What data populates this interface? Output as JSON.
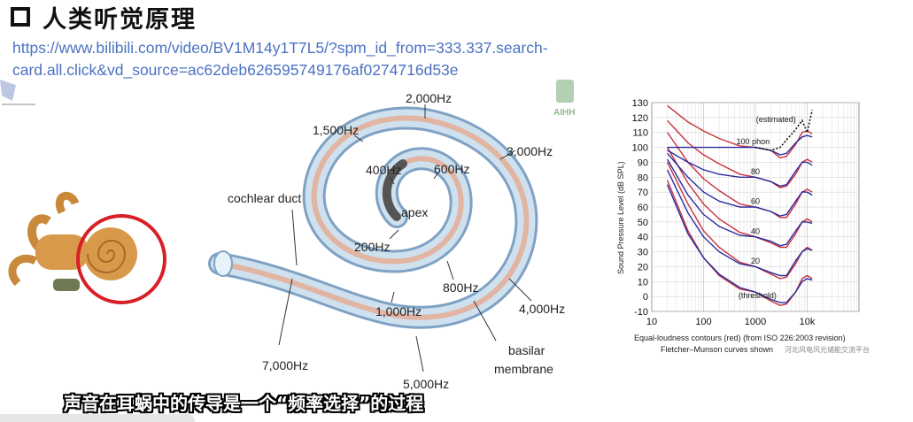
{
  "slide": {
    "title": "人类听觉原理",
    "link_line1": "https://www.bilibili.com/video/BV1M14y1T7L5/?spm_id_from=333.337.search-",
    "link_line2": "card.all.click&vd_source=ac62deb626595749176af0274716d53e",
    "caption": "声音在耳蜗中的传导是一个“频率选择”的过程"
  },
  "cochlea": {
    "labels": {
      "hz2000": "2,000Hz",
      "hz1500": "1,500Hz",
      "hz3000": "3,000Hz",
      "hz400": "400Hz",
      "hz600": "600Hz",
      "apex": "apex",
      "hz200": "200Hz",
      "duct": "cochlear duct",
      "hz800": "800Hz",
      "hz1000": "1,000Hz",
      "hz4000": "4,000Hz",
      "basilar1": "basilar",
      "basilar2": "membrane",
      "hz7000": "7,000Hz",
      "hz5000": "5,000Hz"
    },
    "watermark": "AIHH",
    "colors": {
      "duct": "#b8d4e8",
      "membrane": "#e2b4a2",
      "ring": "#d81f26",
      "cochlea_orange": "#d89a4a"
    }
  },
  "chart_data": {
    "type": "line",
    "title": "",
    "xlabel": "",
    "ylabel": "Sound Pressure Level (dB SPL)",
    "x_scale": "log",
    "xlim": [
      10,
      100000
    ],
    "ylim": [
      -10,
      130
    ],
    "x_ticks": [
      "10",
      "100",
      "1000",
      "10k"
    ],
    "y_ticks": [
      "-10",
      "0",
      "10",
      "20",
      "30",
      "40",
      "50",
      "60",
      "70",
      "80",
      "90",
      "100",
      "110",
      "120",
      "130"
    ],
    "grid": true,
    "caption_line1": "Equal-loudness contours (red) (from ISO 226:2003 revision)",
    "caption_line2": "Fletcher–Munson curves shown",
    "annotations": [
      "(estimated)",
      "100 phon",
      "80",
      "60",
      "40",
      "20",
      "(threshold)"
    ],
    "colors": {
      "iso": "#c8323c",
      "fletcher": "#2a2aa0",
      "estimated": "#111111"
    },
    "freqs": [
      20,
      50,
      100,
      200,
      500,
      1000,
      2000,
      3000,
      4000,
      6000,
      8000,
      10000,
      12500
    ],
    "series": [
      {
        "name": "red-threshold",
        "values": [
          78,
          44,
          26,
          14,
          5,
          3,
          -3,
          -6,
          -5,
          3,
          12,
          14,
          12
        ]
      },
      {
        "name": "red-20",
        "values": [
          90,
          62,
          44,
          33,
          23,
          20,
          15,
          12,
          13,
          22,
          30,
          33,
          31
        ]
      },
      {
        "name": "red-40",
        "values": [
          100,
          76,
          62,
          52,
          43,
          40,
          36,
          33,
          33,
          42,
          50,
          52,
          50
        ]
      },
      {
        "name": "red-60",
        "values": [
          110,
          90,
          79,
          71,
          62,
          60,
          57,
          53,
          53,
          62,
          70,
          72,
          70
        ]
      },
      {
        "name": "red-80",
        "values": [
          118,
          103,
          95,
          89,
          82,
          80,
          77,
          73,
          74,
          82,
          90,
          92,
          90
        ]
      },
      {
        "name": "red-100",
        "values": [
          128,
          117,
          111,
          106,
          101,
          100,
          98,
          93,
          94,
          102,
          110,
          111,
          109
        ]
      },
      {
        "name": "blue-threshold",
        "values": [
          75,
          42,
          26,
          15,
          6,
          3,
          -2,
          -4,
          -4,
          3,
          10,
          12,
          11
        ]
      },
      {
        "name": "blue-20",
        "values": [
          85,
          56,
          40,
          30,
          22,
          20,
          16,
          14,
          14,
          24,
          30,
          32,
          31
        ]
      },
      {
        "name": "blue-40",
        "values": [
          92,
          68,
          55,
          47,
          41,
          40,
          37,
          34,
          35,
          44,
          50,
          50,
          49
        ]
      },
      {
        "name": "blue-60",
        "values": [
          96,
          80,
          70,
          64,
          60,
          60,
          57,
          54,
          55,
          64,
          70,
          70,
          68
        ]
      },
      {
        "name": "blue-80",
        "values": [
          98,
          90,
          85,
          82,
          80,
          80,
          77,
          74,
          75,
          84,
          90,
          90,
          88
        ]
      },
      {
        "name": "blue-100",
        "values": [
          100,
          100,
          100,
          100,
          100,
          100,
          98,
          95,
          96,
          103,
          107,
          108,
          107
        ]
      },
      {
        "name": "estimated",
        "values": [
          null,
          null,
          null,
          null,
          null,
          100,
          98,
          100,
          105,
          112,
          118,
          110,
          125
        ]
      }
    ],
    "watermark": "河北风电风光储能交流平台"
  }
}
